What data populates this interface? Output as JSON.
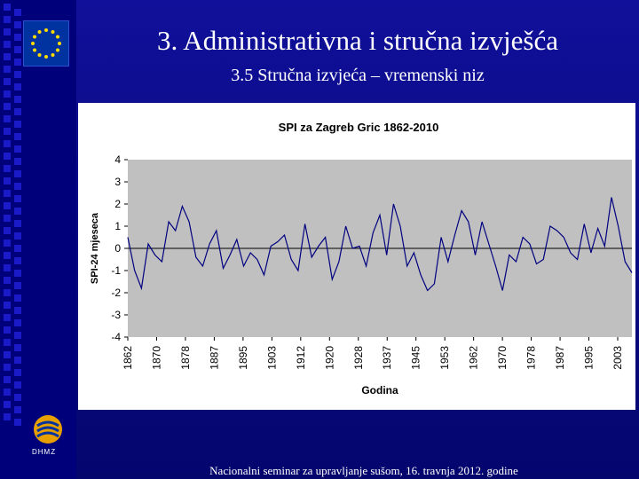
{
  "slide": {
    "title": "3. Administrativna i stručna izvješća",
    "subtitle": "3.5 Stručna izvjeća – vremenski niz",
    "footer": "Nacionalni seminar za upravljanje sušom, 16. travnja 2012. godine",
    "logo_text": "DHMZ"
  },
  "colors": {
    "background": "#0a0a8c",
    "chart_plot_area": "#c0c0c0",
    "series_line": "#000080",
    "zero_line": "#000000"
  },
  "chart_data": {
    "type": "line",
    "title": "SPI za Zagreb Gric 1862-2010",
    "xlabel": "Godina",
    "ylabel": "SPI-24 mjeseca",
    "ylim": [
      -4,
      4
    ],
    "yticks": [
      4,
      3,
      2,
      1,
      0,
      -1,
      -2,
      -3,
      -4
    ],
    "xlim": [
      1862,
      2010
    ],
    "xticks": [
      "1862",
      "1870",
      "1878",
      "1887",
      "1895",
      "1903",
      "1912",
      "1920",
      "1928",
      "1937",
      "1945",
      "1953",
      "1962",
      "1970",
      "1978",
      "1987",
      "1995",
      "2003"
    ],
    "grid": false,
    "series": [
      {
        "name": "SPI-24",
        "x": [
          1862,
          1864,
          1866,
          1868,
          1870,
          1872,
          1874,
          1876,
          1878,
          1880,
          1882,
          1884,
          1886,
          1888,
          1890,
          1892,
          1894,
          1896,
          1898,
          1900,
          1902,
          1904,
          1906,
          1908,
          1910,
          1912,
          1914,
          1916,
          1918,
          1920,
          1922,
          1924,
          1926,
          1928,
          1930,
          1932,
          1934,
          1936,
          1938,
          1940,
          1942,
          1944,
          1946,
          1948,
          1950,
          1952,
          1954,
          1956,
          1958,
          1960,
          1962,
          1964,
          1966,
          1968,
          1970,
          1972,
          1974,
          1976,
          1978,
          1980,
          1982,
          1984,
          1986,
          1988,
          1990,
          1992,
          1994,
          1996,
          1998,
          2000,
          2002,
          2004,
          2006,
          2008,
          2010
        ],
        "values": [
          0.5,
          -1.0,
          -1.8,
          0.2,
          -0.3,
          -0.6,
          1.2,
          0.8,
          1.9,
          1.2,
          -0.4,
          -0.8,
          0.2,
          0.8,
          -0.9,
          -0.3,
          0.4,
          -0.8,
          -0.2,
          -0.5,
          -1.2,
          0.1,
          0.3,
          0.6,
          -0.5,
          -1.0,
          1.1,
          -0.4,
          0.1,
          0.5,
          -1.4,
          -0.6,
          1.0,
          0.0,
          0.1,
          -0.8,
          0.7,
          1.5,
          -0.3,
          2.0,
          1.0,
          -0.8,
          -0.2,
          -1.2,
          -1.9,
          -1.6,
          0.5,
          -0.6,
          0.6,
          1.7,
          1.2,
          -0.3,
          1.2,
          0.2,
          -0.8,
          -1.9,
          -0.3,
          -0.6,
          0.5,
          0.2,
          -0.7,
          -0.5,
          1.0,
          0.8,
          0.5,
          -0.2,
          -0.5,
          1.1,
          -0.2,
          0.9,
          0.1,
          2.3,
          1.0,
          -0.6,
          -1.1
        ]
      }
    ]
  }
}
